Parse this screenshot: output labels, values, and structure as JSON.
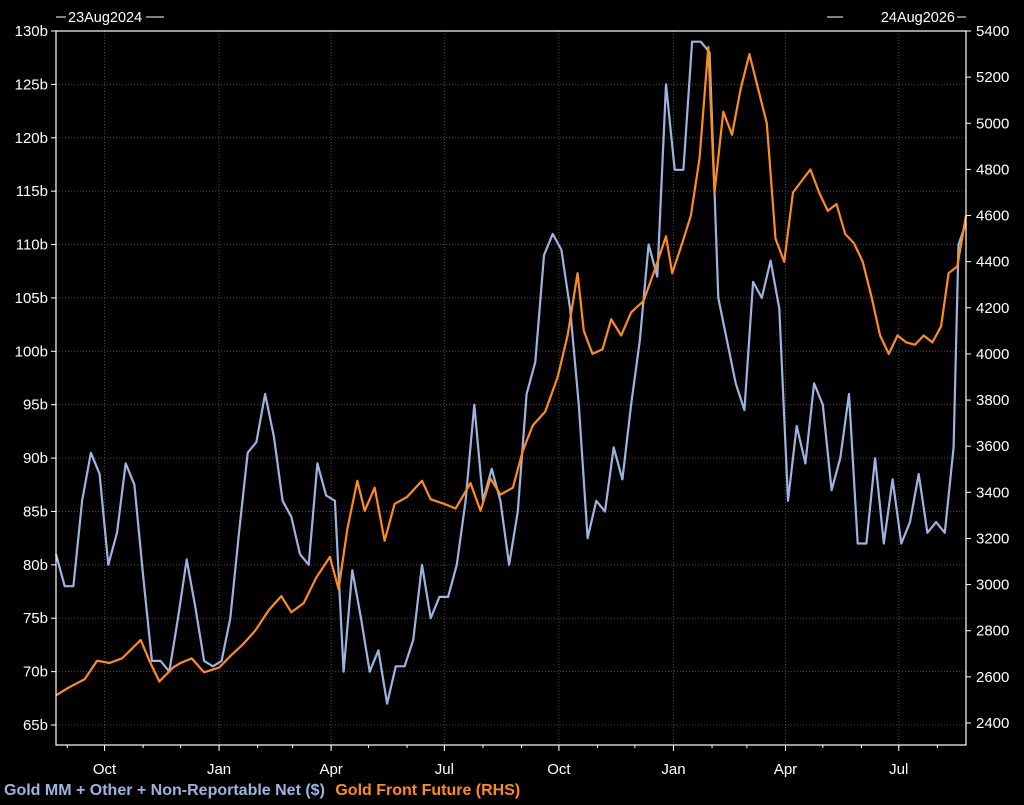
{
  "chart_data": {
    "type": "line",
    "start_label": "23Aug2024",
    "end_label": "24Aug2026",
    "x_ticks": [
      "Oct",
      "Jan",
      "Apr",
      "Jul",
      "Oct",
      "Jan",
      "Apr",
      "Jul"
    ],
    "x_tick_dates": [
      "2024-10-01",
      "2025-01-01",
      "2025-04-01",
      "2025-07-01",
      "2025-10-01",
      "2026-01-01",
      "2026-04-01",
      "2026-07-01"
    ],
    "xlim": [
      "2024-08-23",
      "2026-08-24"
    ],
    "left_axis": {
      "ticks": [
        "65b",
        "70b",
        "75b",
        "80b",
        "85b",
        "90b",
        "95b",
        "100b",
        "105b",
        "110b",
        "115b",
        "120b",
        "125b",
        "130b"
      ],
      "ylim": [
        65,
        130
      ]
    },
    "right_axis": {
      "ticks": [
        "2400",
        "2600",
        "2800",
        "3000",
        "3200",
        "3400",
        "3600",
        "3800",
        "4000",
        "4200",
        "4400",
        "4600",
        "4800",
        "5000",
        "5200",
        "5400"
      ],
      "ylim": [
        2400,
        5400
      ]
    },
    "grid": true,
    "legend_position": "bottom-left",
    "series": [
      {
        "name": "Gold MM + Other + Non-Reportable Net ($)",
        "axis": "left",
        "color": "#9bb4e0",
        "points": [
          [
            "2024-08-23",
            81.0
          ],
          [
            "2024-08-30",
            78.0
          ],
          [
            "2024-09-06",
            78.0
          ],
          [
            "2024-09-13",
            86.0
          ],
          [
            "2024-09-20",
            90.5
          ],
          [
            "2024-09-27",
            88.5
          ],
          [
            "2024-10-04",
            80.0
          ],
          [
            "2024-10-11",
            83.0
          ],
          [
            "2024-10-18",
            89.5
          ],
          [
            "2024-10-25",
            87.5
          ],
          [
            "2024-11-01",
            79.0
          ],
          [
            "2024-11-08",
            71.0
          ],
          [
            "2024-11-15",
            71.0
          ],
          [
            "2024-11-22",
            70.0
          ],
          [
            "2024-11-29",
            75.0
          ],
          [
            "2024-12-06",
            80.5
          ],
          [
            "2024-12-13",
            76.0
          ],
          [
            "2024-12-20",
            71.0
          ],
          [
            "2024-12-27",
            70.5
          ],
          [
            "2025-01-03",
            71.0
          ],
          [
            "2025-01-10",
            75.0
          ],
          [
            "2025-01-17",
            83.0
          ],
          [
            "2025-01-24",
            90.5
          ],
          [
            "2025-01-31",
            91.5
          ],
          [
            "2025-02-07",
            96.0
          ],
          [
            "2025-02-14",
            92.0
          ],
          [
            "2025-02-21",
            86.0
          ],
          [
            "2025-02-28",
            84.5
          ],
          [
            "2025-03-07",
            81.0
          ],
          [
            "2025-03-14",
            80.0
          ],
          [
            "2025-03-21",
            89.5
          ],
          [
            "2025-03-28",
            86.5
          ],
          [
            "2025-04-04",
            86.0
          ],
          [
            "2025-04-11",
            70.0
          ],
          [
            "2025-04-18",
            79.5
          ],
          [
            "2025-04-25",
            75.0
          ],
          [
            "2025-05-02",
            70.0
          ],
          [
            "2025-05-09",
            72.0
          ],
          [
            "2025-05-16",
            67.0
          ],
          [
            "2025-05-23",
            70.5
          ],
          [
            "2025-05-30",
            70.5
          ],
          [
            "2025-06-06",
            73.0
          ],
          [
            "2025-06-13",
            80.0
          ],
          [
            "2025-06-20",
            75.0
          ],
          [
            "2025-06-27",
            77.0
          ],
          [
            "2025-07-04",
            77.0
          ],
          [
            "2025-07-11",
            80.0
          ],
          [
            "2025-07-18",
            86.0
          ],
          [
            "2025-07-25",
            95.0
          ],
          [
            "2025-08-01",
            86.0
          ],
          [
            "2025-08-08",
            89.0
          ],
          [
            "2025-08-15",
            86.0
          ],
          [
            "2025-08-22",
            80.0
          ],
          [
            "2025-08-29",
            85.0
          ],
          [
            "2025-09-05",
            96.0
          ],
          [
            "2025-09-12",
            99.0
          ],
          [
            "2025-09-19",
            109.0
          ],
          [
            "2025-09-26",
            111.0
          ],
          [
            "2025-10-03",
            109.5
          ],
          [
            "2025-10-10",
            104.0
          ],
          [
            "2025-10-17",
            95.0
          ],
          [
            "2025-10-24",
            82.5
          ],
          [
            "2025-10-31",
            86.0
          ],
          [
            "2025-11-07",
            85.0
          ],
          [
            "2025-11-14",
            91.0
          ],
          [
            "2025-11-21",
            88.0
          ],
          [
            "2025-11-28",
            95.0
          ],
          [
            "2025-12-05",
            101.0
          ],
          [
            "2025-12-12",
            110.0
          ],
          [
            "2025-12-19",
            107.0
          ],
          [
            "2025-12-26",
            125.0
          ],
          [
            "2026-01-02",
            117.0
          ],
          [
            "2026-01-09",
            117.0
          ],
          [
            "2026-01-16",
            129.0
          ],
          [
            "2026-01-23",
            129.0
          ],
          [
            "2026-01-30",
            128.0
          ],
          [
            "2026-02-06",
            105.0
          ],
          [
            "2026-02-13",
            101.0
          ],
          [
            "2026-02-20",
            97.0
          ],
          [
            "2026-02-27",
            94.5
          ],
          [
            "2026-03-06",
            106.5
          ],
          [
            "2026-03-13",
            105.0
          ],
          [
            "2026-03-20",
            108.5
          ],
          [
            "2026-03-27",
            104.0
          ],
          [
            "2026-04-03",
            86.0
          ],
          [
            "2026-04-10",
            93.0
          ],
          [
            "2026-04-17",
            89.5
          ],
          [
            "2026-04-24",
            97.0
          ],
          [
            "2026-05-01",
            95.0
          ],
          [
            "2026-05-08",
            87.0
          ],
          [
            "2026-05-15",
            90.0
          ],
          [
            "2026-05-22",
            96.0
          ],
          [
            "2026-05-29",
            82.0
          ],
          [
            "2026-06-05",
            82.0
          ],
          [
            "2026-06-12",
            90.0
          ],
          [
            "2026-06-19",
            82.0
          ],
          [
            "2026-06-26",
            88.0
          ],
          [
            "2026-07-03",
            82.0
          ],
          [
            "2026-07-10",
            84.0
          ],
          [
            "2026-07-17",
            88.5
          ],
          [
            "2026-07-24",
            83.0
          ],
          [
            "2026-07-31",
            84.0
          ],
          [
            "2026-08-07",
            83.0
          ],
          [
            "2026-08-14",
            91.0
          ],
          [
            "2026-08-18",
            110.0
          ],
          [
            "2026-08-24",
            112.0
          ]
        ]
      },
      {
        "name": "Gold Front Future (RHS)",
        "axis": "right",
        "color": "#ff8c1a",
        "points": [
          [
            "2024-08-23",
            2520
          ],
          [
            "2024-09-01",
            2550
          ],
          [
            "2024-09-15",
            2590
          ],
          [
            "2024-09-25",
            2670
          ],
          [
            "2024-10-05",
            2660
          ],
          [
            "2024-10-15",
            2680
          ],
          [
            "2024-10-30",
            2760
          ],
          [
            "2024-11-06",
            2670
          ],
          [
            "2024-11-14",
            2580
          ],
          [
            "2024-11-25",
            2640
          ],
          [
            "2024-12-01",
            2660
          ],
          [
            "2024-12-10",
            2680
          ],
          [
            "2024-12-20",
            2620
          ],
          [
            "2025-01-01",
            2640
          ],
          [
            "2025-01-10",
            2690
          ],
          [
            "2025-01-20",
            2740
          ],
          [
            "2025-01-30",
            2800
          ],
          [
            "2025-02-10",
            2890
          ],
          [
            "2025-02-20",
            2950
          ],
          [
            "2025-02-28",
            2880
          ],
          [
            "2025-03-10",
            2920
          ],
          [
            "2025-03-20",
            3030
          ],
          [
            "2025-03-31",
            3120
          ],
          [
            "2025-04-07",
            2980
          ],
          [
            "2025-04-14",
            3240
          ],
          [
            "2025-04-22",
            3450
          ],
          [
            "2025-04-28",
            3320
          ],
          [
            "2025-05-06",
            3420
          ],
          [
            "2025-05-14",
            3190
          ],
          [
            "2025-05-22",
            3350
          ],
          [
            "2025-06-01",
            3380
          ],
          [
            "2025-06-13",
            3450
          ],
          [
            "2025-06-20",
            3370
          ],
          [
            "2025-07-01",
            3350
          ],
          [
            "2025-07-10",
            3330
          ],
          [
            "2025-07-22",
            3440
          ],
          [
            "2025-07-30",
            3320
          ],
          [
            "2025-08-07",
            3460
          ],
          [
            "2025-08-15",
            3390
          ],
          [
            "2025-08-25",
            3420
          ],
          [
            "2025-09-02",
            3580
          ],
          [
            "2025-09-10",
            3690
          ],
          [
            "2025-09-20",
            3750
          ],
          [
            "2025-09-30",
            3900
          ],
          [
            "2025-10-08",
            4080
          ],
          [
            "2025-10-16",
            4350
          ],
          [
            "2025-10-21",
            4100
          ],
          [
            "2025-10-28",
            4000
          ],
          [
            "2025-11-05",
            4020
          ],
          [
            "2025-11-12",
            4150
          ],
          [
            "2025-11-20",
            4080
          ],
          [
            "2025-11-28",
            4180
          ],
          [
            "2025-12-08",
            4230
          ],
          [
            "2025-12-18",
            4380
          ],
          [
            "2025-12-26",
            4510
          ],
          [
            "2025-12-31",
            4350
          ],
          [
            "2026-01-08",
            4480
          ],
          [
            "2026-01-15",
            4600
          ],
          [
            "2026-01-22",
            4850
          ],
          [
            "2026-01-29",
            5330
          ],
          [
            "2026-02-03",
            4700
          ],
          [
            "2026-02-10",
            5050
          ],
          [
            "2026-02-17",
            4950
          ],
          [
            "2026-02-24",
            5150
          ],
          [
            "2026-03-03",
            5300
          ],
          [
            "2026-03-10",
            5150
          ],
          [
            "2026-03-17",
            5000
          ],
          [
            "2026-03-24",
            4500
          ],
          [
            "2026-03-31",
            4400
          ],
          [
            "2026-04-07",
            4700
          ],
          [
            "2026-04-14",
            4750
          ],
          [
            "2026-04-21",
            4800
          ],
          [
            "2026-04-28",
            4700
          ],
          [
            "2026-05-05",
            4620
          ],
          [
            "2026-05-12",
            4650
          ],
          [
            "2026-05-19",
            4520
          ],
          [
            "2026-05-26",
            4480
          ],
          [
            "2026-06-02",
            4400
          ],
          [
            "2026-06-09",
            4250
          ],
          [
            "2026-06-16",
            4080
          ],
          [
            "2026-06-23",
            4000
          ],
          [
            "2026-06-30",
            4080
          ],
          [
            "2026-07-07",
            4050
          ],
          [
            "2026-07-14",
            4040
          ],
          [
            "2026-07-21",
            4080
          ],
          [
            "2026-07-28",
            4050
          ],
          [
            "2026-08-04",
            4120
          ],
          [
            "2026-08-10",
            4350
          ],
          [
            "2026-08-17",
            4380
          ],
          [
            "2026-08-24",
            4600
          ]
        ]
      }
    ]
  }
}
